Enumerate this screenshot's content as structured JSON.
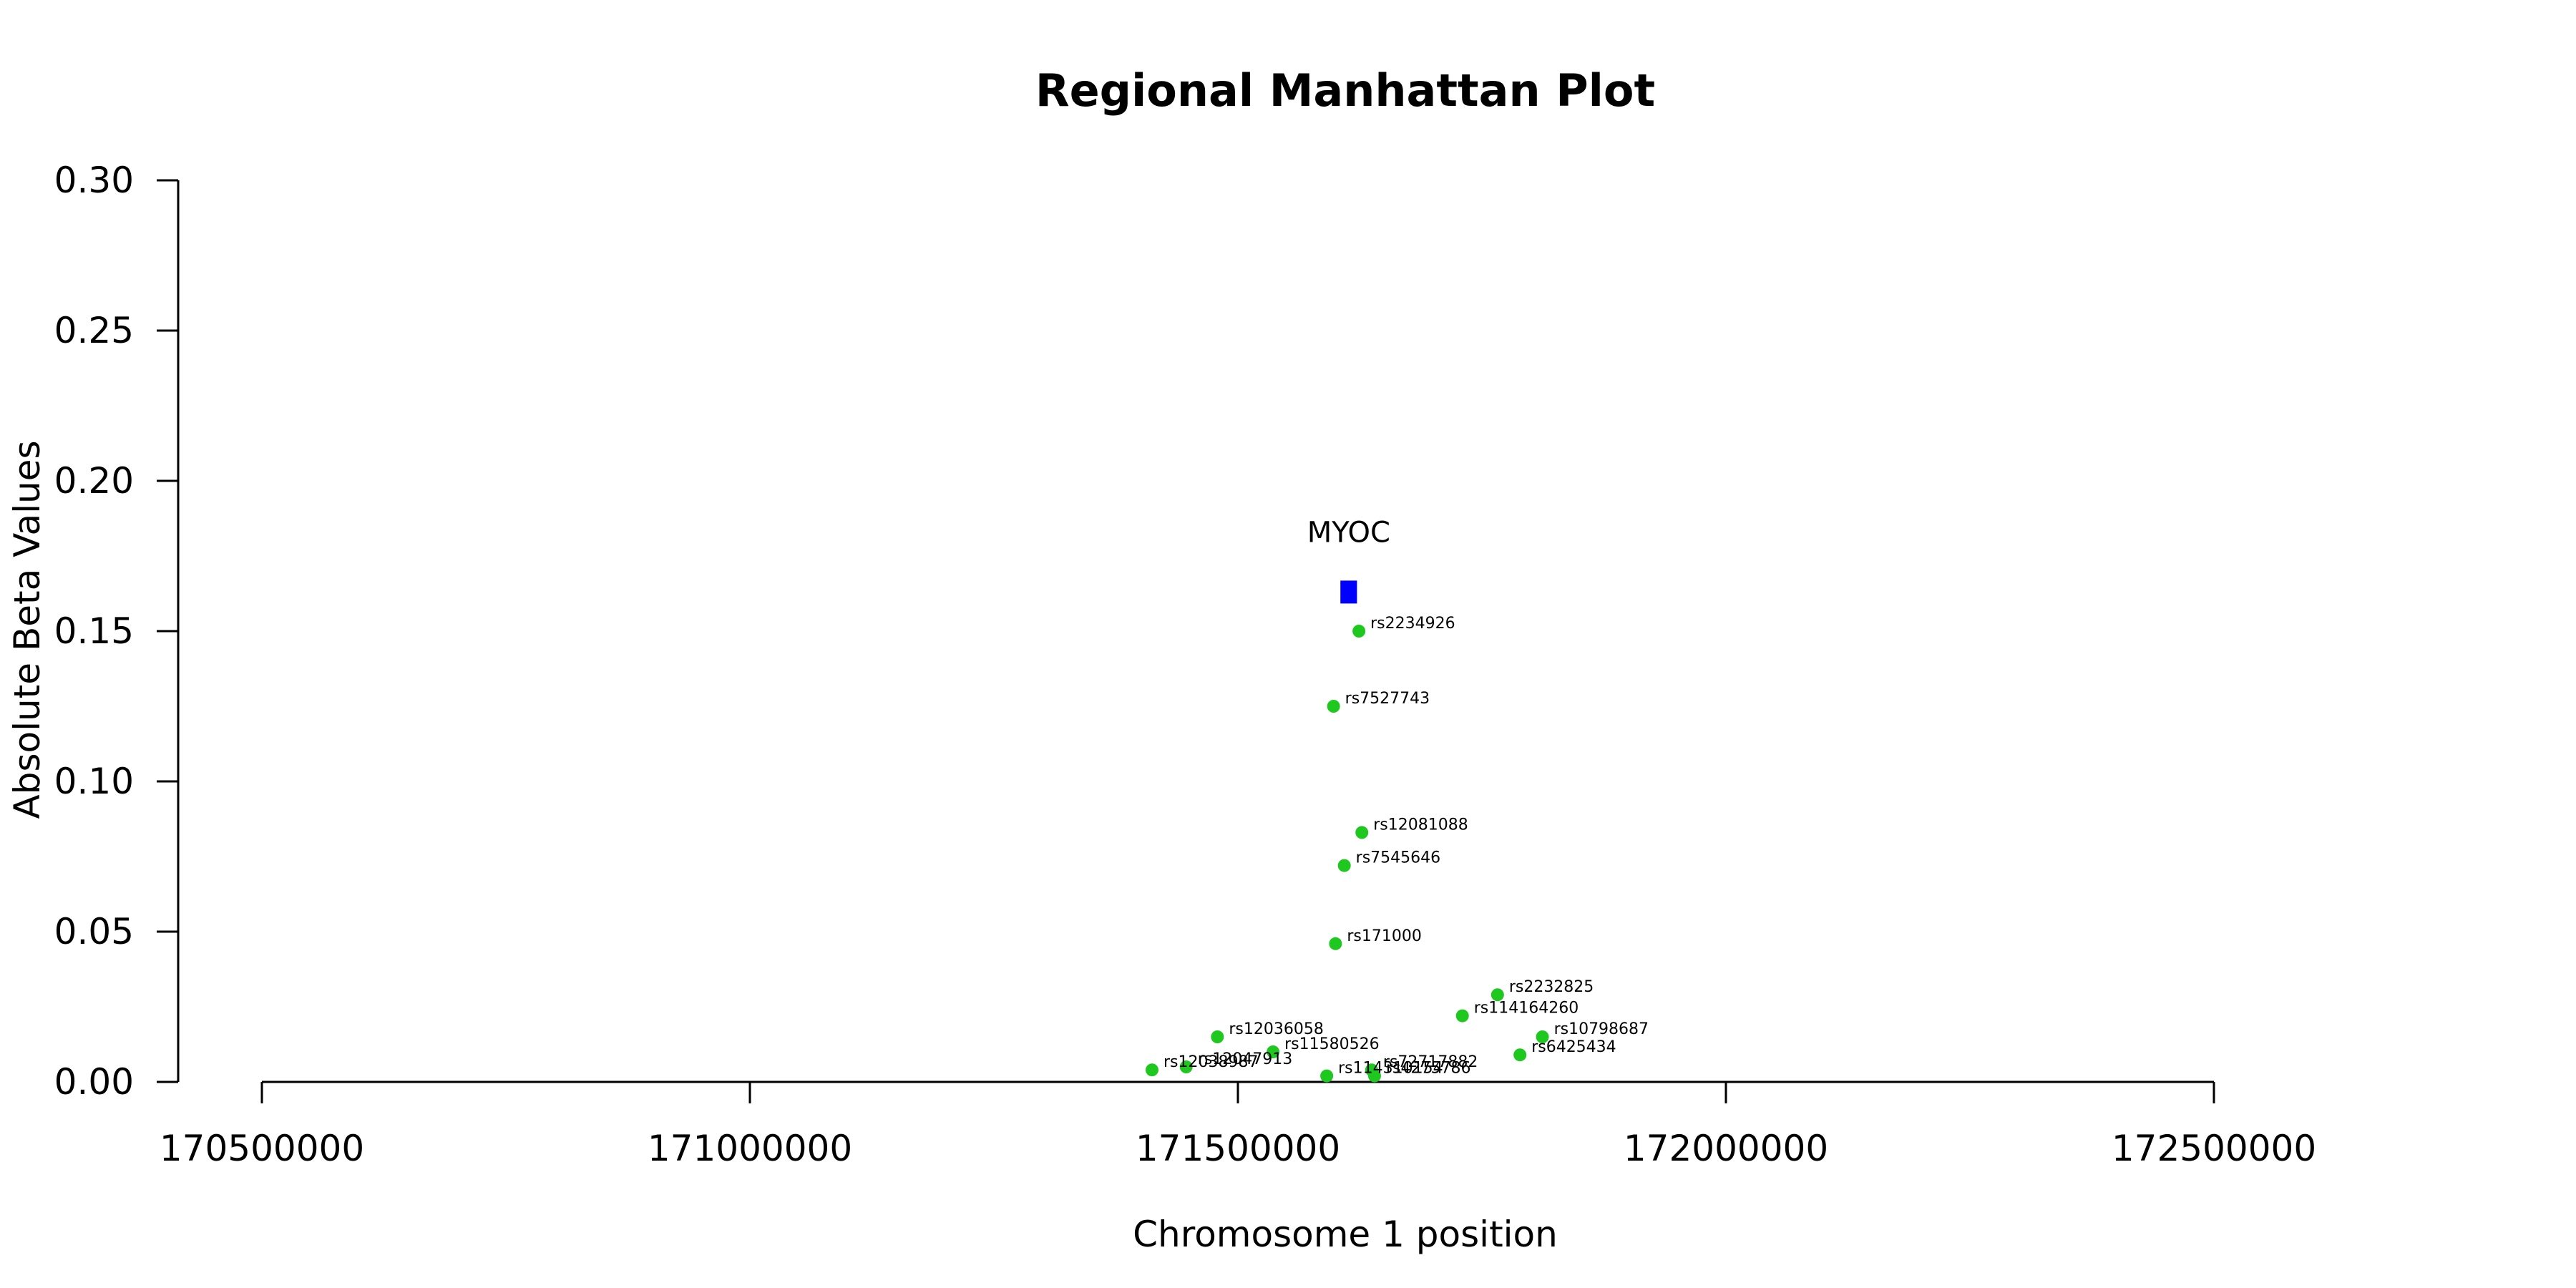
{
  "chart_data": {
    "type": "scatter",
    "title": "Regional Manhattan Plot",
    "xlabel": "Chromosome 1 position",
    "ylabel": "Absolute Beta Values",
    "xlim": [
      170500000,
      172500000
    ],
    "ylim": [
      0,
      0.3
    ],
    "xticks": [
      "170500000",
      "171000000",
      "171500000",
      "172000000",
      "172500000"
    ],
    "yticks": [
      "0.00",
      "0.05",
      "0.10",
      "0.15",
      "0.20",
      "0.25",
      "0.30"
    ],
    "grid": false,
    "colors": {
      "snp": "#1ec81e",
      "gene": "#0000ff"
    },
    "gene": {
      "name": "MYOC",
      "start": 171605000,
      "end": 171622000,
      "y": 0.163
    },
    "points": [
      {
        "label": "rs2234926",
        "x": 171624000,
        "y": 0.15
      },
      {
        "label": "rs7527743",
        "x": 171598000,
        "y": 0.125
      },
      {
        "label": "rs12081088",
        "x": 171627000,
        "y": 0.083
      },
      {
        "label": "rs7545646",
        "x": 171609000,
        "y": 0.072
      },
      {
        "label": "rs171000",
        "x": 171600000,
        "y": 0.046
      },
      {
        "label": "rs2232825",
        "x": 171766000,
        "y": 0.029
      },
      {
        "label": "rs114164260",
        "x": 171730000,
        "y": 0.022
      },
      {
        "label": "rs10798687",
        "x": 171812000,
        "y": 0.015
      },
      {
        "label": "rs12036058",
        "x": 171479000,
        "y": 0.015
      },
      {
        "label": "rs6425434",
        "x": 171789000,
        "y": 0.009
      },
      {
        "label": "rs11580526",
        "x": 171536000,
        "y": 0.01
      },
      {
        "label": "rs72717882",
        "x": 171637000,
        "y": 0.004
      },
      {
        "label": "rs12038987",
        "x": 171412000,
        "y": 0.004
      },
      {
        "label": "rs12047913",
        "x": 171447000,
        "y": 0.005
      },
      {
        "label": "rs114310154",
        "x": 171591000,
        "y": 0.002
      },
      {
        "label": "rs4275786",
        "x": 171640000,
        "y": 0.002
      }
    ]
  }
}
